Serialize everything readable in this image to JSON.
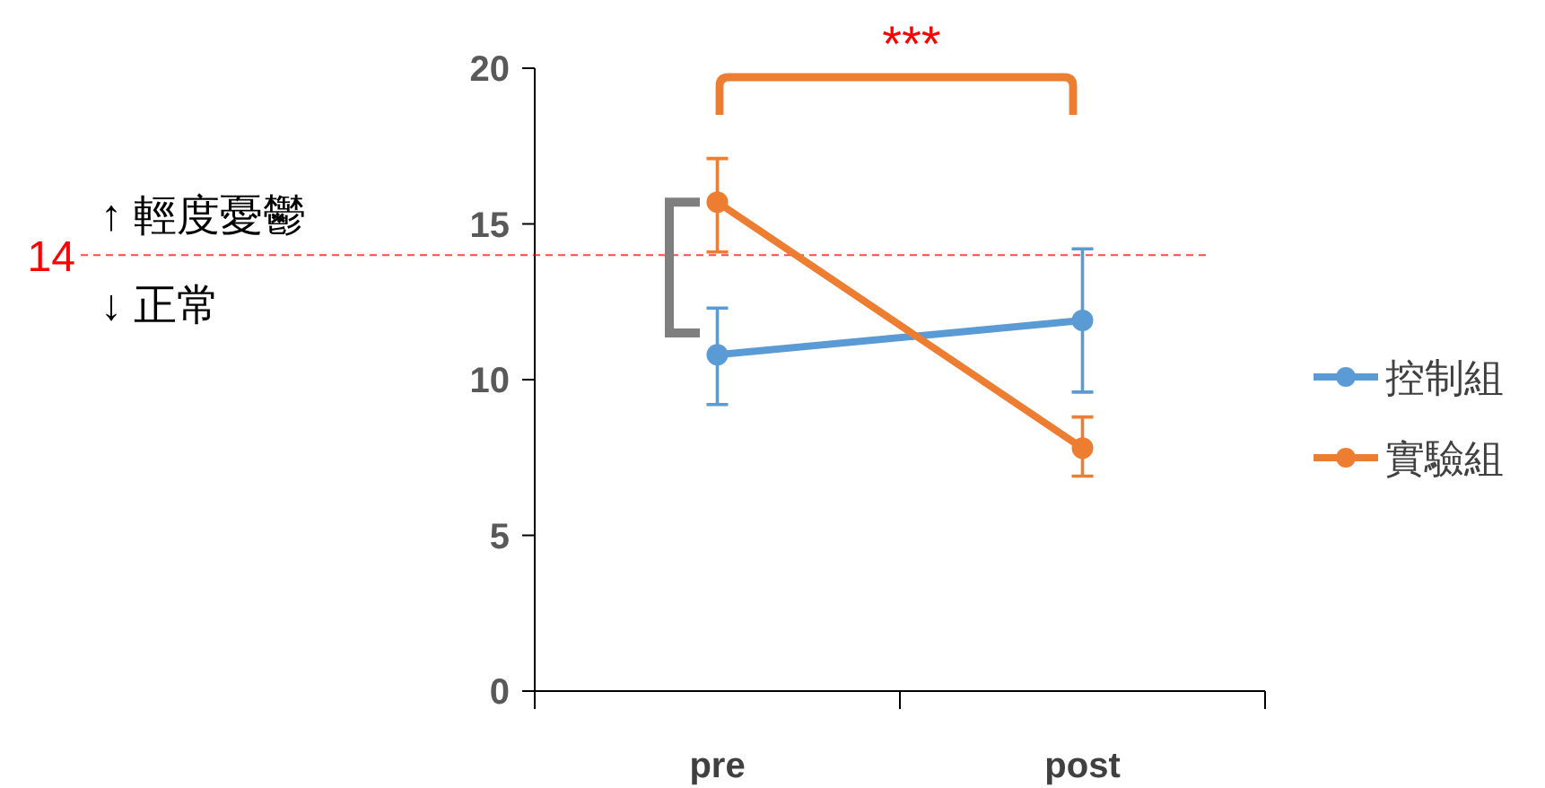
{
  "chart_data": {
    "type": "line",
    "categories": [
      "pre",
      "post"
    ],
    "series": [
      {
        "name": "控制組",
        "color": "#5b9bd5",
        "values": [
          10.8,
          11.9
        ],
        "errors": [
          [
            9.2,
            12.3
          ],
          [
            9.6,
            14.2
          ]
        ]
      },
      {
        "name": "實驗組",
        "color": "#ed7d31",
        "values": [
          15.7,
          7.8
        ],
        "errors": [
          [
            14.1,
            17.1
          ],
          [
            6.9,
            8.8
          ]
        ]
      }
    ],
    "ylim": [
      0,
      20
    ],
    "yticks": [
      0,
      5,
      10,
      15,
      20
    ],
    "ref_lines": [
      {
        "axis": "y",
        "value": 14,
        "label": "14",
        "color": "#ff0000",
        "line_style": "dashed"
      }
    ],
    "annotations": [
      "↑ 輕度憂鬱",
      "↓ 正常",
      "***"
    ],
    "marker": "circle",
    "legend": "right",
    "grid": false
  }
}
